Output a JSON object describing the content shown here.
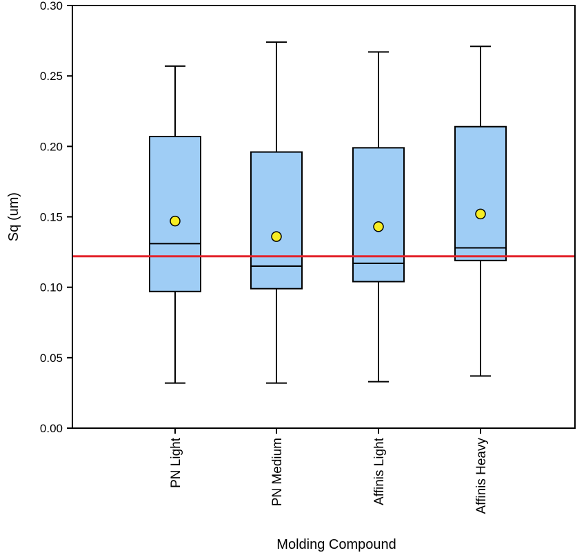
{
  "chart_data": {
    "type": "box",
    "title": "",
    "xlabel": "Molding Compound",
    "ylabel": "Sq (um)",
    "ylim": [
      0,
      0.3
    ],
    "yticks": [
      "0.00",
      "0.05",
      "0.10",
      "0.15",
      "0.20",
      "0.25",
      "0.30"
    ],
    "categories": [
      "PN Light",
      "PN Medium",
      "Affinis Light",
      "Affinis Heavy"
    ],
    "boxes": [
      {
        "min": 0.032,
        "q1": 0.097,
        "median": 0.131,
        "q3": 0.207,
        "max": 0.257,
        "mean": 0.147
      },
      {
        "min": 0.032,
        "q1": 0.099,
        "median": 0.115,
        "q3": 0.196,
        "max": 0.274,
        "mean": 0.136
      },
      {
        "min": 0.033,
        "q1": 0.104,
        "median": 0.117,
        "q3": 0.199,
        "max": 0.267,
        "mean": 0.143
      },
      {
        "min": 0.037,
        "q1": 0.119,
        "median": 0.128,
        "q3": 0.214,
        "max": 0.271,
        "mean": 0.152
      }
    ],
    "reference_line": {
      "value": 0.122,
      "color": "#e3232b"
    },
    "colors": {
      "box_fill": "#9fcdf5",
      "mean_marker": "#f7ed24",
      "stroke": "#000000"
    },
    "grid": false
  }
}
